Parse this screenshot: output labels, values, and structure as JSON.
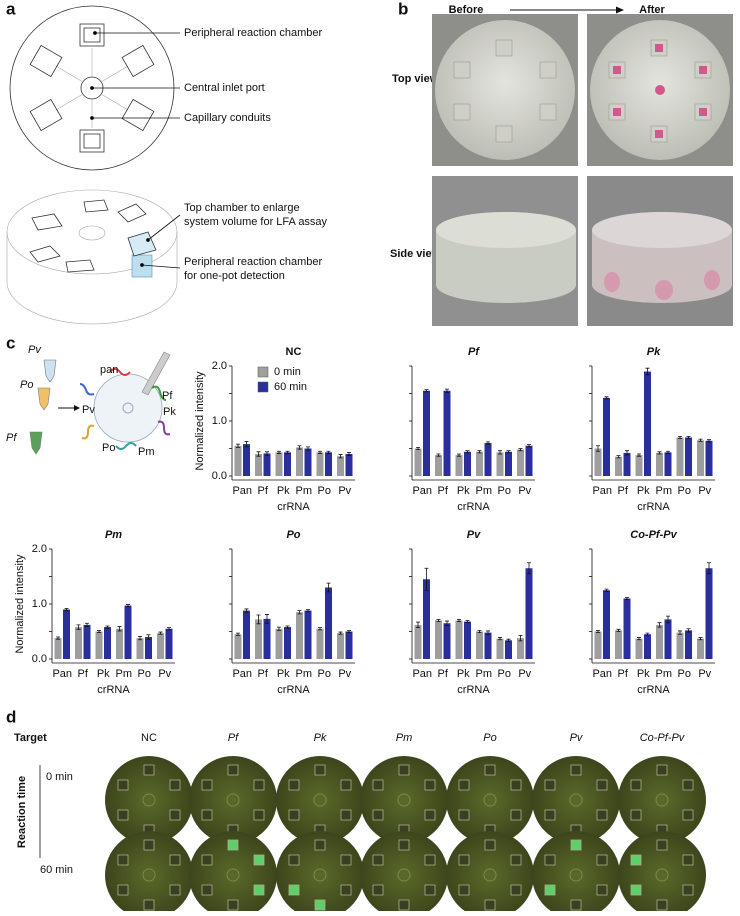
{
  "panel_labels": [
    "a",
    "b",
    "c",
    "d"
  ],
  "panel_a": {
    "top_labels": [
      "Peripheral reaction chamber",
      "Central inlet port",
      "Capillary conduits"
    ],
    "bottom_labels": [
      [
        "Top chamber to enlarge",
        "system volume for LFA assay"
      ],
      [
        "Peripheral reaction chamber",
        "for one-pot detection"
      ]
    ]
  },
  "panel_b": {
    "before": "Before",
    "after": "After",
    "rows": [
      "Top view",
      "Side view"
    ]
  },
  "panel_c": {
    "tubes": [
      "Pv",
      "Po",
      "Pf"
    ],
    "disc_labels": [
      "pan",
      "Pf",
      "Pk",
      "Pm",
      "Po",
      "Pv"
    ]
  },
  "chart_data": [
    {
      "type": "bar",
      "title": "NC",
      "y_label": "Normalized intensity",
      "x_label": "crRNA",
      "categories": [
        "Pan",
        "Pf",
        "Pk",
        "Pm",
        "Po",
        "Pv"
      ],
      "series": [
        {
          "name": "0 min",
          "color": "#9e9e9e",
          "values": [
            0.55,
            0.4,
            0.43,
            0.52,
            0.43,
            0.36
          ],
          "errors": [
            0.03,
            0.04,
            0.02,
            0.03,
            0.02,
            0.03
          ]
        },
        {
          "name": "60 min",
          "color": "#2b2f9e",
          "values": [
            0.58,
            0.41,
            0.43,
            0.5,
            0.43,
            0.4
          ],
          "errors": [
            0.05,
            0.03,
            0.02,
            0.03,
            0.02,
            0.03
          ]
        }
      ],
      "ylim": [
        0,
        2
      ],
      "yticks": [
        {
          "value": 0,
          "label": "0.0"
        },
        0.5,
        {
          "value": 1,
          "label": "1.0"
        },
        1.5,
        {
          "value": 2,
          "label": "2.0"
        }
      ]
    },
    {
      "type": "bar",
      "title": "Pf",
      "x_label": "crRNA",
      "categories": [
        "Pan",
        "Pf",
        "Pk",
        "Pm",
        "Po",
        "Pv"
      ],
      "series": [
        {
          "color": "#9e9e9e",
          "values": [
            0.5,
            0.38,
            0.38,
            0.44,
            0.43,
            0.48
          ],
          "errors": [
            0.02,
            0.02,
            0.02,
            0.02,
            0.03,
            0.02
          ]
        },
        {
          "color": "#2b2f9e",
          "values": [
            1.55,
            1.55,
            0.44,
            0.6,
            0.44,
            0.55
          ],
          "errors": [
            0.02,
            0.03,
            0.02,
            0.02,
            0.02,
            0.02
          ]
        }
      ],
      "ylim": [
        0,
        2
      ],
      "yticks": [
        0,
        0.5,
        1,
        1.5,
        2
      ]
    },
    {
      "type": "bar",
      "title": "Pk",
      "x_label": "crRNA",
      "categories": [
        "Pan",
        "Pf",
        "Pk",
        "Pm",
        "Po",
        "Pv"
      ],
      "series": [
        {
          "color": "#9e9e9e",
          "values": [
            0.5,
            0.35,
            0.38,
            0.42,
            0.7,
            0.65
          ],
          "errors": [
            0.05,
            0.02,
            0.02,
            0.02,
            0.02,
            0.02
          ]
        },
        {
          "color": "#2b2f9e",
          "values": [
            1.42,
            0.42,
            1.9,
            0.43,
            0.7,
            0.64
          ],
          "errors": [
            0.02,
            0.04,
            0.06,
            0.02,
            0.02,
            0.02
          ]
        }
      ],
      "ylim": [
        0,
        2
      ],
      "yticks": [
        0,
        0.5,
        1,
        1.5,
        2
      ]
    },
    {
      "type": "bar",
      "title": "Pm",
      "y_label": "Normalized intensity",
      "x_label": "crRNA",
      "categories": [
        "Pan",
        "Pf",
        "Pk",
        "Pm",
        "Po",
        "Pv"
      ],
      "series": [
        {
          "color": "#9e9e9e",
          "values": [
            0.38,
            0.58,
            0.5,
            0.55,
            0.38,
            0.47
          ],
          "errors": [
            0.02,
            0.04,
            0.02,
            0.04,
            0.03,
            0.02
          ]
        },
        {
          "color": "#2b2f9e",
          "values": [
            0.9,
            0.62,
            0.58,
            0.97,
            0.4,
            0.55
          ],
          "errors": [
            0.02,
            0.03,
            0.02,
            0.02,
            0.04,
            0.02
          ]
        }
      ],
      "ylim": [
        0,
        2
      ],
      "yticks": [
        {
          "value": 0,
          "label": "0.0"
        },
        0.5,
        {
          "value": 1,
          "label": "1.0"
        },
        1.5,
        {
          "value": 2,
          "label": "2.0"
        }
      ]
    },
    {
      "type": "bar",
      "title": "Po",
      "x_label": "crRNA",
      "categories": [
        "Pan",
        "Pf",
        "Pk",
        "Pm",
        "Po",
        "Pv"
      ],
      "series": [
        {
          "color": "#9e9e9e",
          "values": [
            0.45,
            0.72,
            0.55,
            0.85,
            0.55,
            0.47
          ],
          "errors": [
            0.02,
            0.08,
            0.03,
            0.03,
            0.02,
            0.02
          ]
        },
        {
          "color": "#2b2f9e",
          "values": [
            0.88,
            0.73,
            0.58,
            0.88,
            1.3,
            0.5
          ],
          "errors": [
            0.03,
            0.08,
            0.02,
            0.02,
            0.08,
            0.02
          ]
        }
      ],
      "ylim": [
        0,
        2
      ],
      "yticks": [
        0,
        0.5,
        1,
        1.5,
        2
      ]
    },
    {
      "type": "bar",
      "title": "Pv",
      "x_label": "crRNA",
      "categories": [
        "Pan",
        "Pf",
        "Pk",
        "Pm",
        "Po",
        "Pv"
      ],
      "series": [
        {
          "color": "#9e9e9e",
          "values": [
            0.62,
            0.7,
            0.7,
            0.5,
            0.37,
            0.38
          ],
          "errors": [
            0.05,
            0.02,
            0.02,
            0.02,
            0.02,
            0.05
          ]
        },
        {
          "color": "#2b2f9e",
          "values": [
            1.45,
            0.65,
            0.68,
            0.48,
            0.34,
            1.65
          ],
          "errors": [
            0.2,
            0.04,
            0.02,
            0.03,
            0.02,
            0.1
          ]
        }
      ],
      "ylim": [
        0,
        2
      ],
      "yticks": [
        0,
        0.5,
        1,
        1.5,
        2
      ]
    },
    {
      "type": "bar",
      "title": "Co-Pf-Pv",
      "x_label": "crRNA",
      "categories": [
        "Pan",
        "Pf",
        "Pk",
        "Pm",
        "Po",
        "Pv"
      ],
      "series": [
        {
          "color": "#9e9e9e",
          "values": [
            0.5,
            0.52,
            0.37,
            0.62,
            0.48,
            0.37
          ],
          "errors": [
            0.02,
            0.02,
            0.02,
            0.04,
            0.03,
            0.02
          ]
        },
        {
          "color": "#2b2f9e",
          "values": [
            1.25,
            1.1,
            0.45,
            0.72,
            0.52,
            1.65
          ],
          "errors": [
            0.02,
            0.02,
            0.02,
            0.06,
            0.03,
            0.1
          ]
        }
      ],
      "ylim": [
        0,
        2
      ],
      "yticks": [
        0,
        0.5,
        1,
        1.5,
        2
      ]
    }
  ],
  "panel_d": {
    "target_label": "Target",
    "targets": [
      "NC",
      "Pf",
      "Pk",
      "Pm",
      "Po",
      "Pv",
      "Co-Pf-Pv"
    ],
    "time_label": "Reaction time",
    "times": [
      "0 min",
      "60 min"
    ]
  }
}
